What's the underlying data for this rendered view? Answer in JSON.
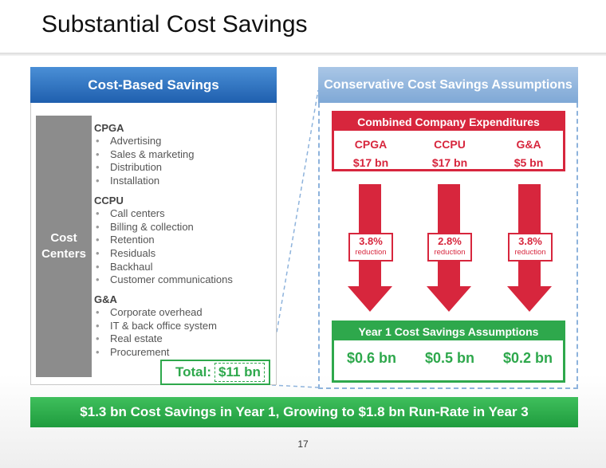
{
  "title": "Substantial Cost Savings",
  "left": {
    "header": "Cost-Based Savings",
    "side_label": [
      "Cost",
      "Centers"
    ],
    "groups": [
      {
        "title": "CPGA",
        "items": [
          "Advertising",
          "Sales & marketing",
          "Distribution",
          "Installation"
        ]
      },
      {
        "title": "CCPU",
        "items": [
          "Call centers",
          "Billing & collection",
          "Retention",
          "Residuals",
          "Backhaul",
          "Customer communications"
        ]
      },
      {
        "title": "G&A",
        "items": [
          "Corporate overhead",
          "IT & back office system",
          "Real estate",
          "Procurement"
        ]
      }
    ],
    "total_label": "Total:",
    "total_value": "$11 bn"
  },
  "right": {
    "header": "Conservative Cost Savings Assumptions",
    "combined_title": "Combined Company Expenditures",
    "expenditures": [
      {
        "name": "CPGA",
        "value": "$17 bn"
      },
      {
        "name": "CCPU",
        "value": "$17 bn"
      },
      {
        "name": "G&A",
        "value": "$5 bn"
      }
    ],
    "reductions": [
      {
        "pct": "3.8%",
        "label": "reduction"
      },
      {
        "pct": "2.8%",
        "label": "reduction"
      },
      {
        "pct": "3.8%",
        "label": "reduction"
      }
    ],
    "year1_title": "Year 1 Cost Savings Assumptions",
    "year1_values": [
      "$0.6 bn",
      "$0.5 bn",
      "$0.2 bn"
    ]
  },
  "banner": "$1.3 bn Cost Savings in Year 1, Growing to $1.8 bn Run-Rate in Year 3",
  "page_number": "17",
  "colors": {
    "blue": "#1f5fae",
    "light_blue": "#8eb3dc",
    "red": "#d7263d",
    "green": "#2ea84c",
    "gray": "#8c8c8c"
  }
}
